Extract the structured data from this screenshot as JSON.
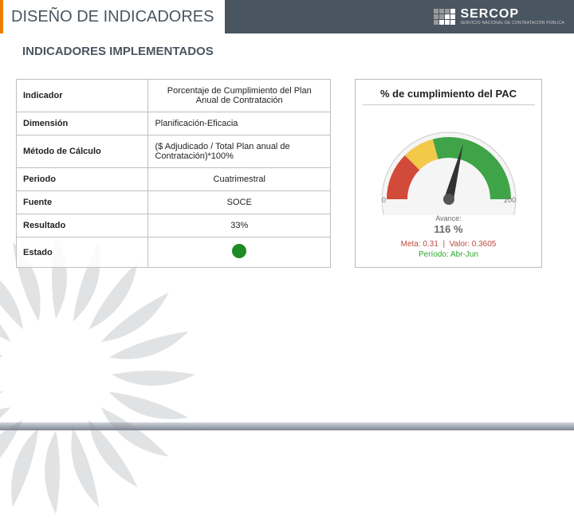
{
  "header": {
    "title": "DISEÑO DE INDICADORES",
    "logo_text": "SERCOP",
    "logo_sub": "SERVICIO NACIONAL DE CONTRATACIÓN PÚBLICA",
    "bar_color": "#4a5562",
    "accent_color": "#ef7d00"
  },
  "subtitle": "INDICADORES IMPLEMENTADOS",
  "table": {
    "rows": [
      {
        "label": "Indicador",
        "value": "Porcentaje de Cumplimiento del Plan Anual de Contratación",
        "center": true
      },
      {
        "label": "Dimensión",
        "value": "Planificación-Eficacia",
        "center": false
      },
      {
        "label": "Método de Cálculo",
        "value": "($ Adjudicado / Total Plan anual de Contratación)*100%",
        "center": false
      },
      {
        "label": "Periodo",
        "value": "Cuatrimestral",
        "center": true
      },
      {
        "label": "Fuente",
        "value": "SOCE",
        "center": true
      },
      {
        "label": "Resultado",
        "value": "33%",
        "center": true
      }
    ],
    "estado_label": "Estado",
    "status_color": "#1f8b24",
    "border_color": "#bfbfbf"
  },
  "gauge": {
    "title": "% de cumplimiento del PAC",
    "avance_label": "Avance:",
    "avance_value": "116 %",
    "meta_label": "Meta:",
    "meta_value": "0.31",
    "valor_label": "Valor:",
    "valor_value": "0.3605",
    "period_prefix": "Período:",
    "period_value": "Abr-Jun",
    "min_scale": "0",
    "max_scale": "200",
    "needle_percent": 116,
    "colors": {
      "red": "#d24a3a",
      "yellow": "#f3c94a",
      "green": "#3ea447",
      "face": "#f5f5f5",
      "needle": "#333333"
    }
  }
}
